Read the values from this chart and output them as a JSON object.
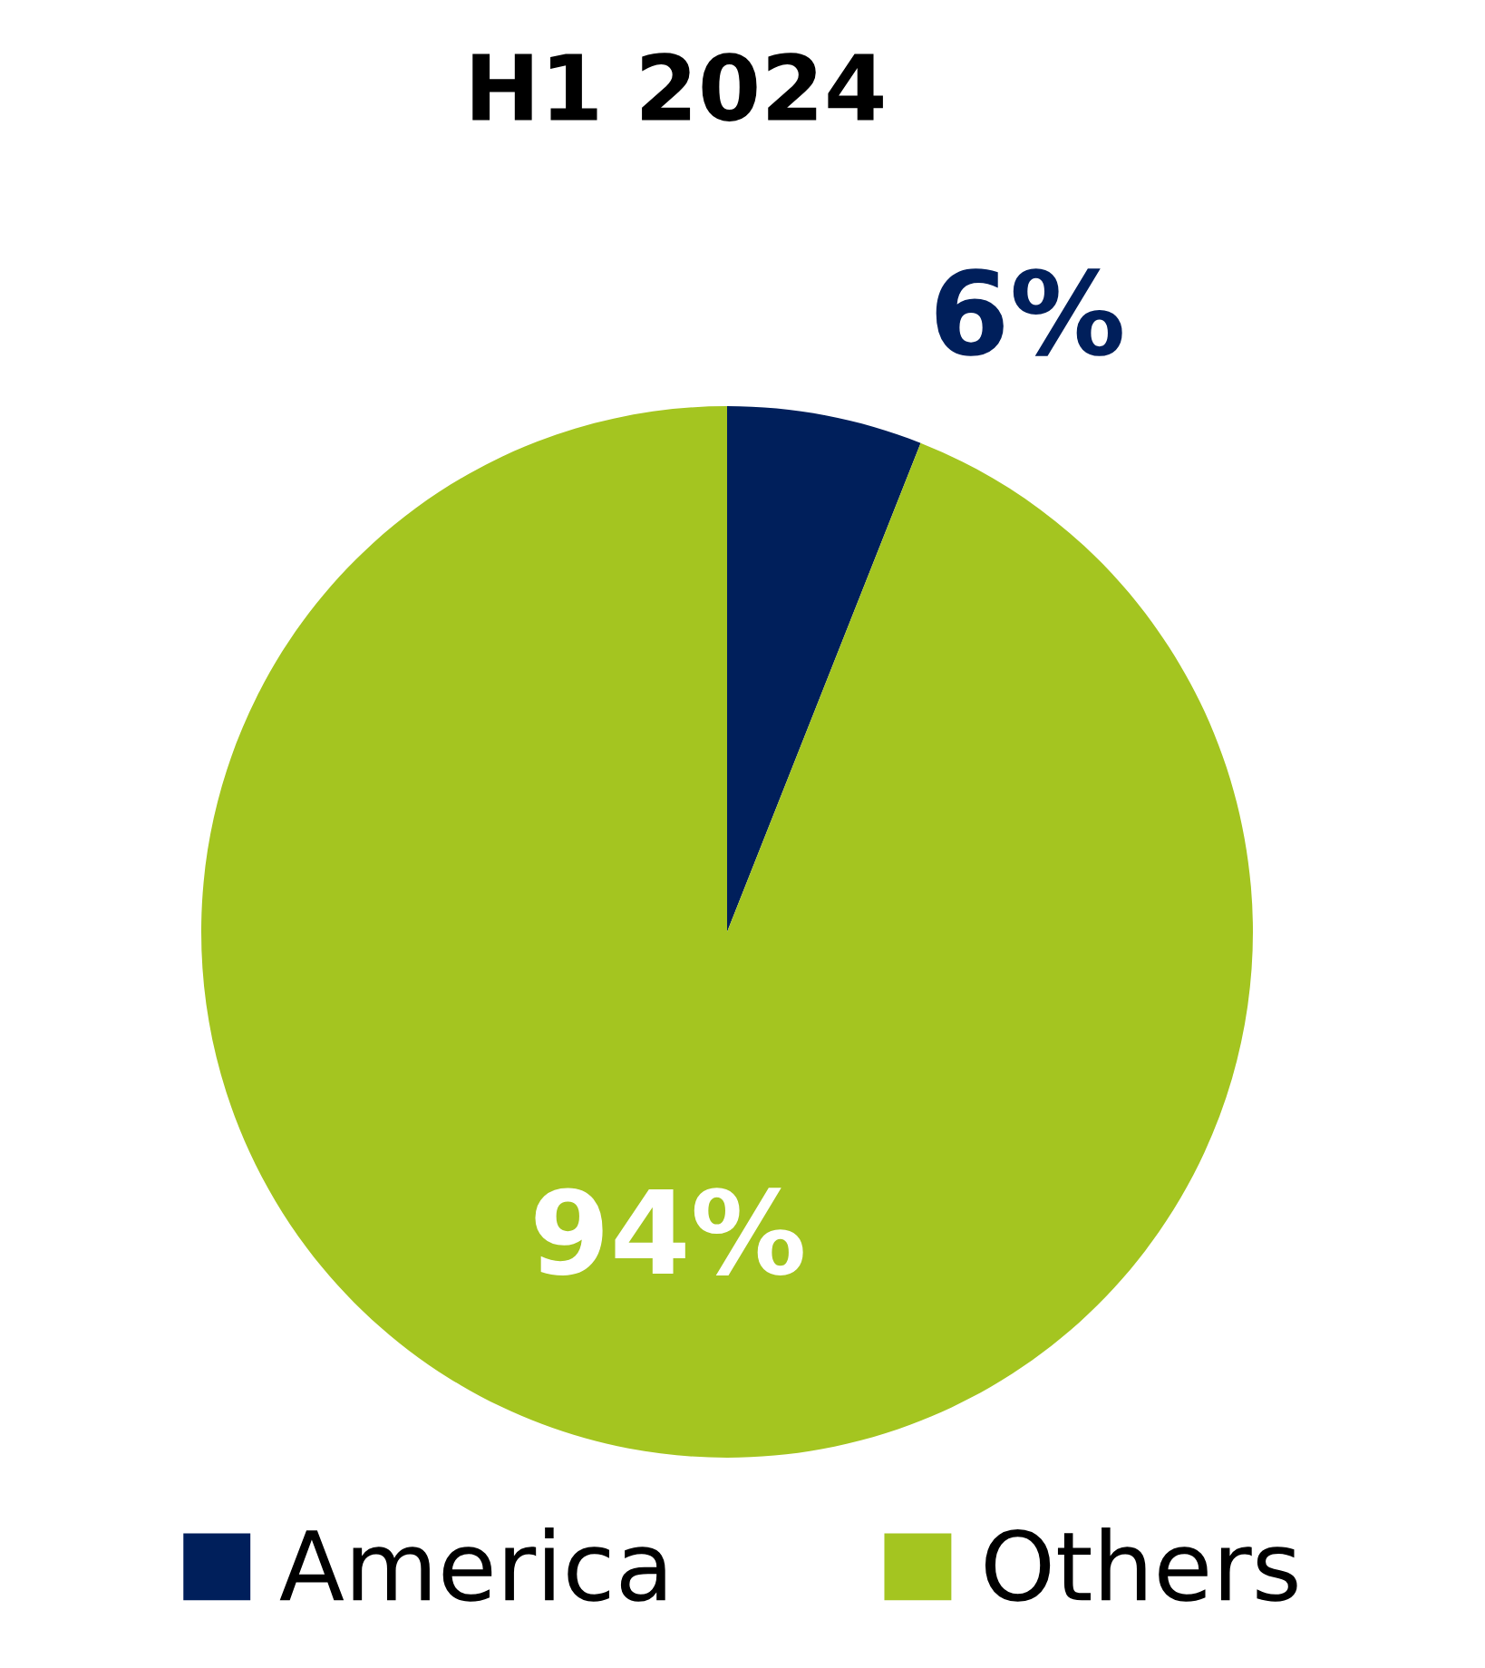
{
  "chart_data": {
    "type": "pie",
    "title": "H1 2024",
    "categories": [
      "America",
      "Others"
    ],
    "values": [
      6,
      94
    ],
    "colors": [
      "#001f5b",
      "#a4c520"
    ],
    "value_labels": [
      "6%",
      "94%"
    ],
    "legend": "bottom"
  }
}
